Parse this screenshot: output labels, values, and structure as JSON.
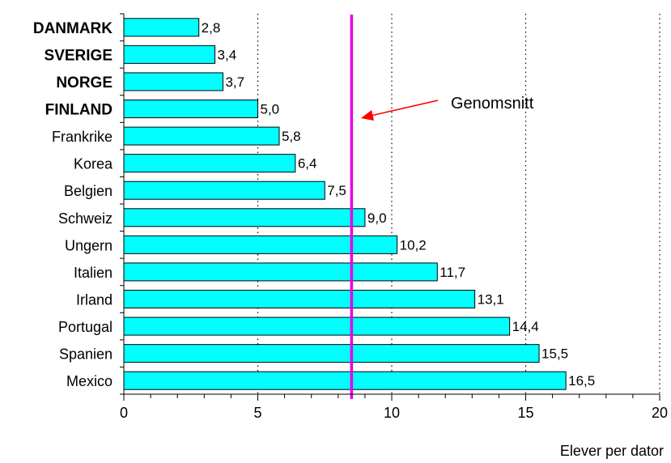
{
  "chart_data": {
    "type": "bar",
    "orientation": "horizontal",
    "categories": [
      "DANMARK",
      "SVERIGE",
      "NORGE",
      "FINLAND",
      "Frankrike",
      "Korea",
      "Belgien",
      "Schweiz",
      "Ungern",
      "Italien",
      "Irland",
      "Portugal",
      "Spanien",
      "Mexico"
    ],
    "bold_categories": [
      "DANMARK",
      "SVERIGE",
      "NORGE",
      "FINLAND"
    ],
    "values": [
      2.8,
      3.4,
      3.7,
      5.0,
      5.8,
      6.4,
      7.5,
      9.0,
      10.2,
      11.7,
      13.1,
      14.4,
      15.5,
      16.5
    ],
    "value_labels": [
      "2,8",
      "3,4",
      "3,7",
      "5,0",
      "5,8",
      "6,4",
      "7,5",
      "9,0",
      "10,2",
      "11,7",
      "13,1",
      "14,4",
      "15,5",
      "16,5"
    ],
    "xlim": [
      0,
      20
    ],
    "xticks": [
      0,
      5,
      10,
      15,
      20
    ],
    "xtick_labels": [
      "0",
      "5",
      "10",
      "15",
      "20"
    ],
    "xlabel": "Elever per dator",
    "grid": "vertical dotted",
    "average": {
      "value": 8.5,
      "label": "Genomsnitt",
      "color": "#e600e6"
    },
    "bar_color": "#00ffff",
    "arrow_color": "#ff0000"
  }
}
